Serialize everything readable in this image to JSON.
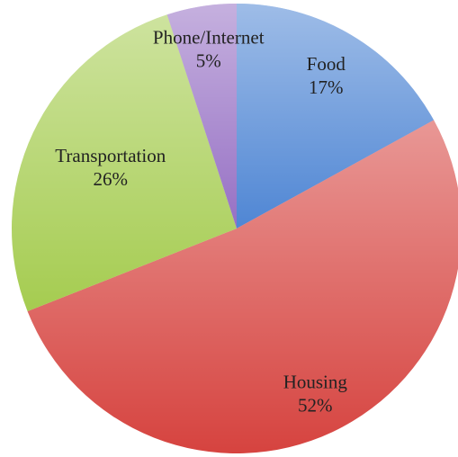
{
  "chart_data": {
    "type": "pie",
    "categories": [
      "Food",
      "Housing",
      "Transportation",
      "Phone/Internet"
    ],
    "values": [
      17,
      52,
      26,
      5
    ],
    "value_labels": [
      "17%",
      "52%",
      "26%",
      "5%"
    ],
    "colors": [
      "#4f86d4",
      "#d6433f",
      "#a5cc50",
      "#9670c4"
    ]
  }
}
